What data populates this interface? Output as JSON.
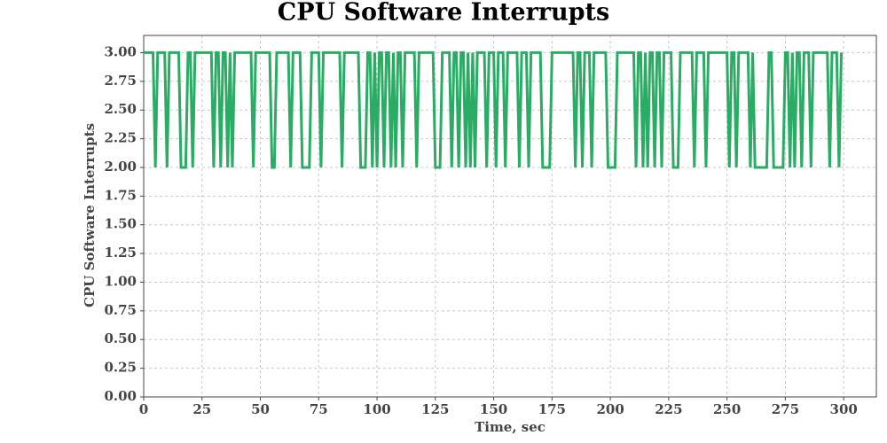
{
  "chart_data": {
    "type": "line",
    "title": "CPU Software Interrupts",
    "x_label": "Time, sec",
    "y_label": "CPU Software Interrupts",
    "color": "#2aac64",
    "grid": true,
    "xlim": [
      0,
      314
    ],
    "ylim": [
      0,
      3.15
    ],
    "xticks": [
      0,
      25,
      50,
      75,
      100,
      125,
      150,
      175,
      200,
      225,
      250,
      275,
      300
    ],
    "yticks": [
      {
        "value": 0,
        "label": "0.00"
      },
      {
        "value": 0.25,
        "label": "0.25"
      },
      {
        "value": 0.5,
        "label": "0.50"
      },
      {
        "value": 0.75,
        "label": "0.75"
      },
      {
        "value": 1,
        "label": "1.00"
      },
      {
        "value": 1.25,
        "label": "1.25"
      },
      {
        "value": 1.5,
        "label": "1.50"
      },
      {
        "value": 1.75,
        "label": "1.75"
      },
      {
        "value": 2,
        "label": "2.00"
      },
      {
        "value": 2.25,
        "label": "2.25"
      },
      {
        "value": 2.5,
        "label": "2.50"
      },
      {
        "value": 2.75,
        "label": "2.75"
      },
      {
        "value": 3,
        "label": "3.00"
      }
    ],
    "x": [
      0,
      1,
      2,
      3,
      4,
      5,
      6,
      7,
      8,
      9,
      10,
      11,
      12,
      13,
      14,
      15,
      16,
      17,
      18,
      19,
      20,
      21,
      22,
      23,
      24,
      25,
      26,
      27,
      28,
      29,
      30,
      31,
      32,
      33,
      34,
      35,
      36,
      37,
      38,
      39,
      40,
      41,
      42,
      43,
      44,
      45,
      46,
      47,
      48,
      49,
      50,
      51,
      52,
      53,
      54,
      55,
      56,
      57,
      58,
      59,
      60,
      61,
      62,
      63,
      64,
      65,
      66,
      67,
      68,
      69,
      70,
      71,
      72,
      73,
      74,
      75,
      76,
      77,
      78,
      79,
      80,
      81,
      82,
      83,
      84,
      85,
      86,
      87,
      88,
      89,
      90,
      91,
      92,
      93,
      94,
      95,
      96,
      97,
      98,
      99,
      100,
      101,
      102,
      103,
      104,
      105,
      106,
      107,
      108,
      109,
      110,
      111,
      112,
      113,
      114,
      115,
      116,
      117,
      118,
      119,
      120,
      121,
      122,
      123,
      124,
      125,
      126,
      127,
      128,
      129,
      130,
      131,
      132,
      133,
      134,
      135,
      136,
      137,
      138,
      139,
      140,
      141,
      142,
      143,
      144,
      145,
      146,
      147,
      148,
      149,
      150,
      151,
      152,
      153,
      154,
      155,
      156,
      157,
      158,
      159,
      160,
      161,
      162,
      163,
      164,
      165,
      166,
      167,
      168,
      169,
      170,
      171,
      172,
      173,
      174,
      175,
      176,
      177,
      178,
      179,
      180,
      181,
      182,
      183,
      184,
      185,
      186,
      187,
      188,
      189,
      190,
      191,
      192,
      193,
      194,
      195,
      196,
      197,
      198,
      199,
      200,
      201,
      202,
      203,
      204,
      205,
      206,
      207,
      208,
      209,
      210,
      211,
      212,
      213,
      214,
      215,
      216,
      217,
      218,
      219,
      220,
      221,
      222,
      223,
      224,
      225,
      226,
      227,
      228,
      229,
      230,
      231,
      232,
      233,
      234,
      235,
      236,
      237,
      238,
      239,
      240,
      241,
      242,
      243,
      244,
      245,
      246,
      247,
      248,
      249,
      250,
      251,
      252,
      253,
      254,
      255,
      256,
      257,
      258,
      259,
      260,
      261,
      262,
      263,
      264,
      265,
      266,
      267,
      268,
      269,
      270,
      271,
      272,
      273,
      274,
      275,
      276,
      277,
      278,
      279,
      280,
      281,
      282,
      283,
      284,
      285,
      286,
      287,
      288,
      289,
      290,
      291,
      292,
      293,
      294,
      295,
      296,
      297,
      298,
      299
    ],
    "values": [
      3,
      3,
      3,
      3,
      3,
      2,
      3,
      3,
      3,
      3,
      2,
      3,
      3,
      3,
      3,
      3,
      2,
      2,
      2,
      3,
      3,
      2,
      3,
      3,
      3,
      3,
      3,
      3,
      3,
      3,
      2,
      3,
      3,
      2,
      3,
      3,
      2,
      3,
      2,
      3,
      3,
      3,
      3,
      3,
      3,
      3,
      3,
      2,
      3,
      3,
      3,
      3,
      3,
      3,
      3,
      2,
      2,
      3,
      3,
      3,
      3,
      3,
      3,
      2,
      3,
      3,
      3,
      3,
      2,
      2,
      2,
      2,
      3,
      3,
      3,
      3,
      2,
      3,
      3,
      3,
      3,
      3,
      3,
      3,
      3,
      2,
      3,
      3,
      3,
      3,
      3,
      3,
      3,
      2,
      2,
      2,
      3,
      3,
      2,
      3,
      2,
      3,
      3,
      2,
      3,
      3,
      2,
      3,
      2,
      3,
      3,
      2,
      3,
      3,
      3,
      3,
      3,
      2,
      3,
      3,
      3,
      3,
      3,
      3,
      3,
      2,
      2,
      2,
      3,
      3,
      3,
      3,
      2,
      3,
      3,
      2,
      3,
      3,
      2,
      3,
      2,
      3,
      2,
      3,
      3,
      3,
      3,
      2,
      3,
      3,
      3,
      2,
      3,
      3,
      3,
      2,
      3,
      3,
      3,
      3,
      3,
      2,
      3,
      3,
      3,
      2,
      3,
      3,
      3,
      3,
      3,
      2,
      2,
      2,
      2,
      3,
      3,
      3,
      3,
      3,
      3,
      3,
      3,
      3,
      3,
      2,
      3,
      3,
      2,
      3,
      3,
      3,
      2,
      3,
      3,
      3,
      3,
      3,
      3,
      2,
      2,
      2,
      2,
      3,
      3,
      3,
      3,
      3,
      3,
      3,
      3,
      2,
      3,
      3,
      2,
      3,
      2,
      3,
      3,
      2,
      3,
      3,
      2,
      3,
      3,
      3,
      3,
      2,
      2,
      2,
      3,
      3,
      3,
      3,
      3,
      3,
      2,
      3,
      3,
      3,
      3,
      2,
      3,
      3,
      3,
      3,
      3,
      3,
      3,
      3,
      3,
      2,
      3,
      3,
      2,
      3,
      3,
      3,
      3,
      3,
      2,
      3,
      2,
      2,
      2,
      2,
      2,
      2,
      3,
      3,
      2,
      2,
      2,
      2,
      2,
      3,
      3,
      2,
      3,
      2,
      3,
      3,
      2,
      3,
      3,
      3,
      2,
      3,
      3,
      3,
      3,
      3,
      3,
      3,
      2,
      3,
      3,
      3,
      2,
      3
    ]
  }
}
